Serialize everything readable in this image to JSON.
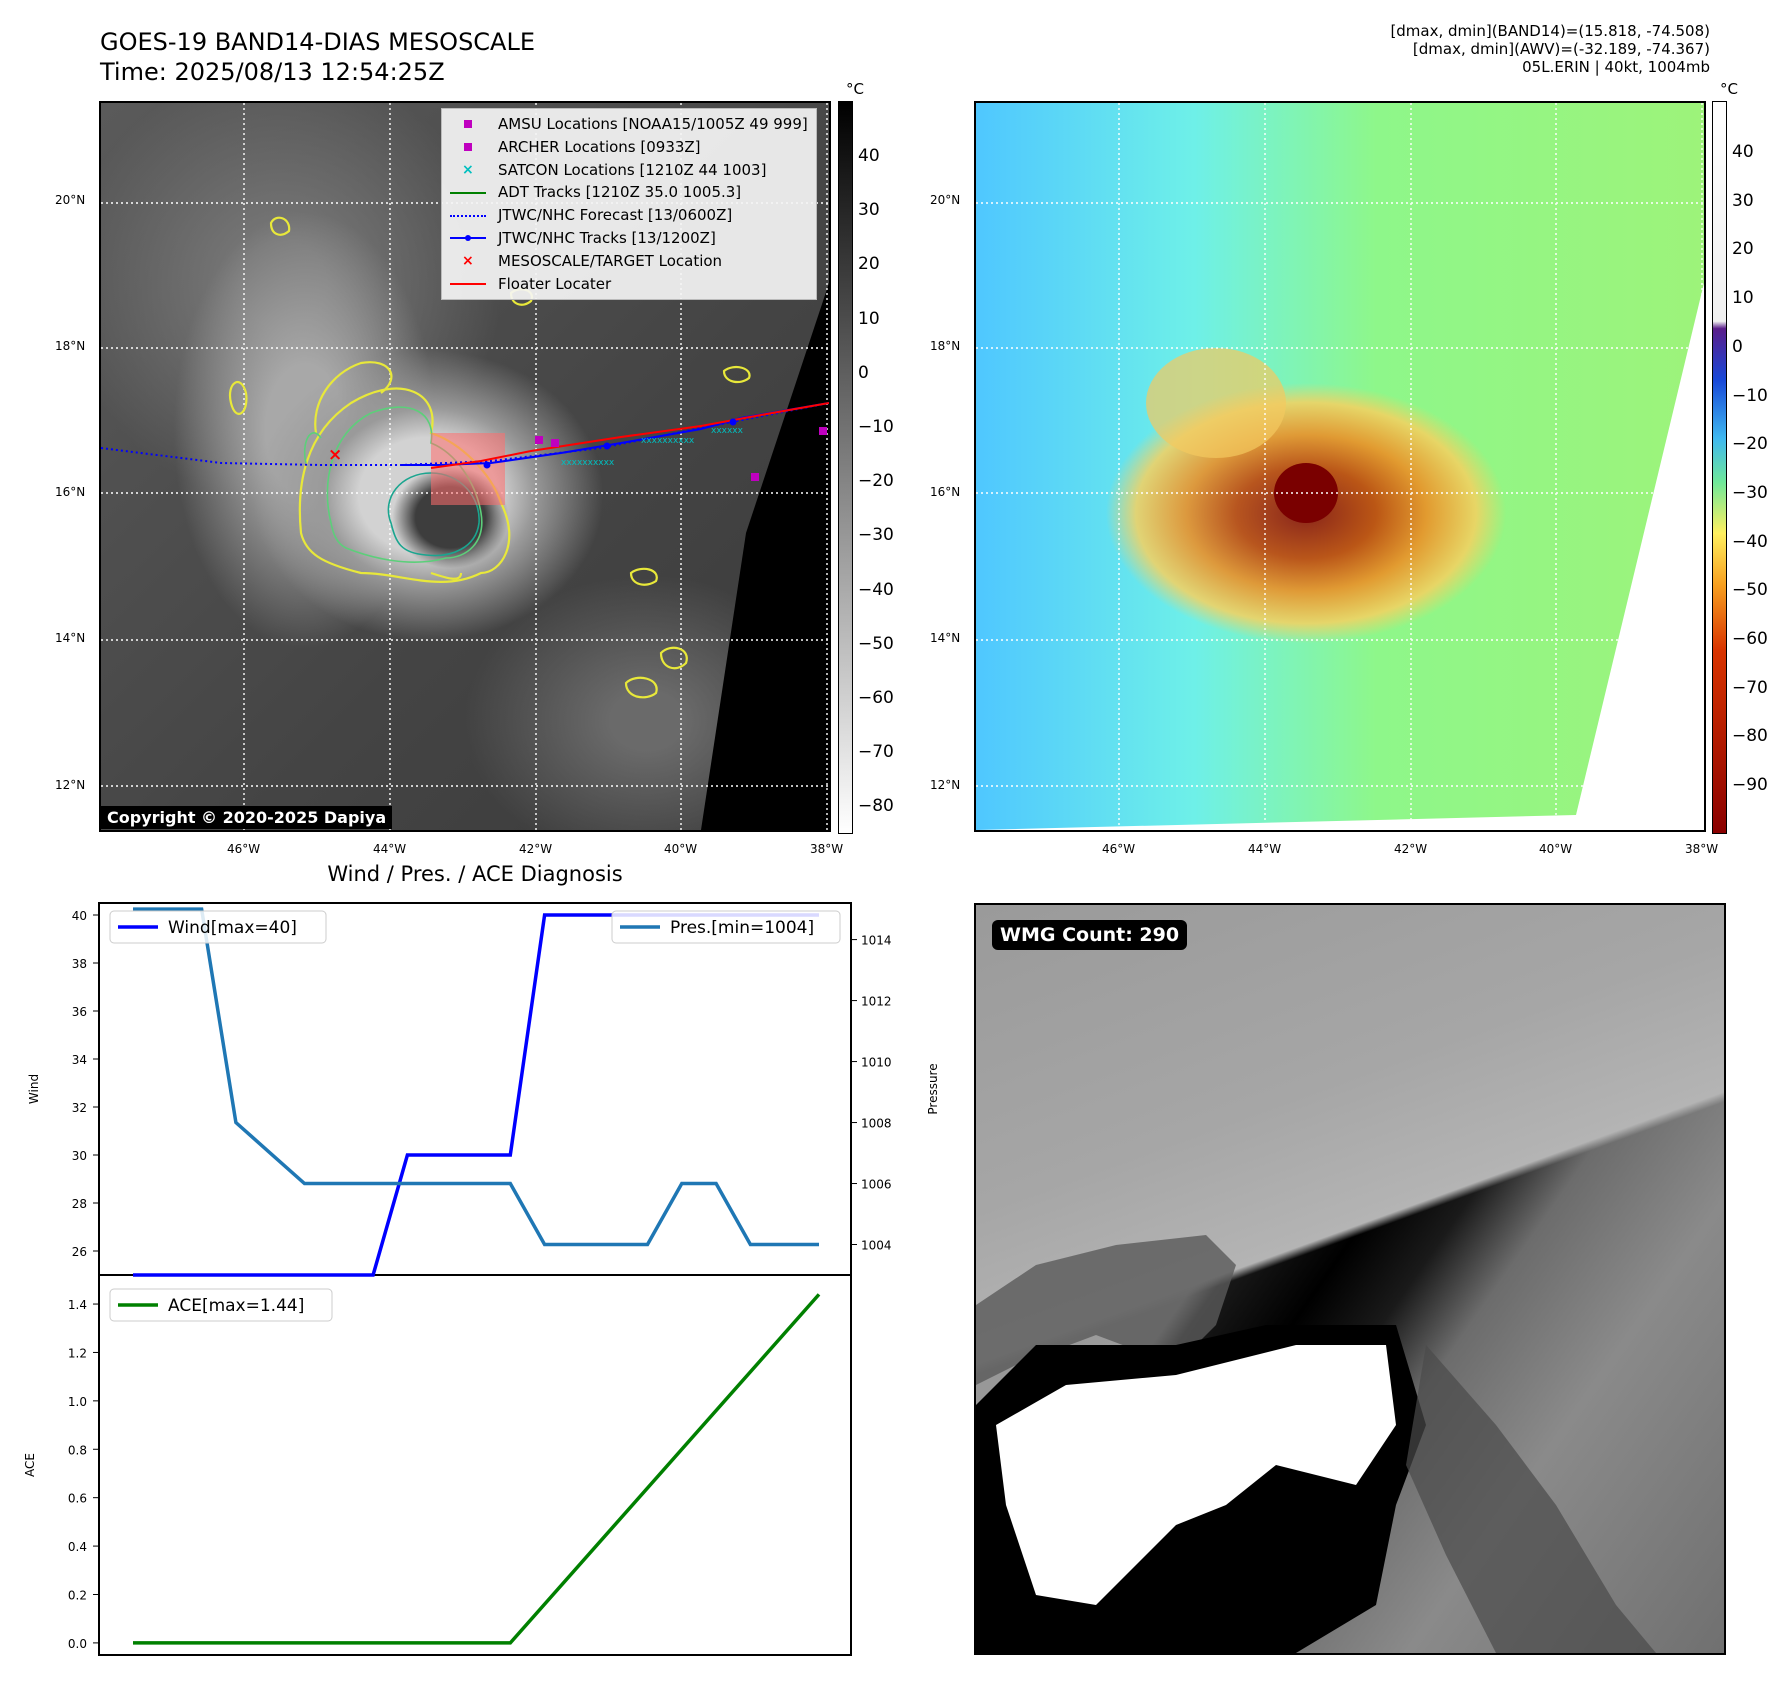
{
  "titles": {
    "main": "GOES-19 BAND14-DIAS MESOSCALE",
    "time": "Time: 2025/08/13 12:54:25Z",
    "info_lines": [
      "[dmax, dmin](BAND14)=(15.818, -74.508)",
      "[dmax, dmin](AWV)=(-32.189, -74.367)",
      "05L.ERIN | 40kt, 1004mb"
    ],
    "diag": "Wind / Pres. / ACE Diagnosis",
    "copyright": "Copyright © 2020-2025 Dapiya",
    "wmg": "WMG Count: 290"
  },
  "map": {
    "lat_labels": [
      "20°N",
      "18°N",
      "16°N",
      "14°N",
      "12°N"
    ],
    "lon_labels": [
      "46°W",
      "44°W",
      "42°W",
      "40°W",
      "38°W"
    ],
    "legend": [
      {
        "label": "AMSU Locations [NOAA15/1005Z 49 999]",
        "symbol": "square",
        "color": "#bf00bf"
      },
      {
        "label": "ARCHER Locations [0933Z]",
        "symbol": "square",
        "color": "#bf00bf"
      },
      {
        "label": "SATCON Locations [1210Z 44 1003]",
        "symbol": "x",
        "color": "#00bfbf"
      },
      {
        "label": "ADT Tracks [1210Z 35.0 1005.3]",
        "symbol": "line",
        "color": "#008000"
      },
      {
        "label": "JTWC/NHC Forecast [13/0600Z]",
        "symbol": "dotted",
        "color": "#0000ff"
      },
      {
        "label": "JTWC/NHC Tracks [13/1200Z]",
        "symbol": "line-dot",
        "color": "#0000ff"
      },
      {
        "label": "MESOSCALE/TARGET Location",
        "symbol": "x",
        "color": "#ff0000"
      },
      {
        "label": "Floater Locater",
        "symbol": "line",
        "color": "#ff0000"
      }
    ],
    "cbar_unit": "°C",
    "cbar1_ticks": [
      "40",
      "30",
      "20",
      "10",
      "0",
      "−10",
      "−20",
      "−30",
      "−40",
      "−50",
      "−60",
      "−70",
      "−80"
    ],
    "cbar2_ticks": [
      "40",
      "30",
      "20",
      "10",
      "0",
      "−10",
      "−20",
      "−30",
      "−40",
      "−50",
      "−60",
      "−70",
      "−80",
      "−90"
    ]
  },
  "chart_data": [
    {
      "type": "line",
      "title": "Wind / Pres. / ACE Diagnosis",
      "ylabel": "Wind",
      "y2label": "Pressure",
      "ylim": [
        25,
        40.5
      ],
      "y2lim": [
        1003,
        1015.2
      ],
      "yticks": [
        26,
        28,
        30,
        32,
        34,
        36,
        38,
        40
      ],
      "y2ticks": [
        1004,
        1006,
        1008,
        1010,
        1012,
        1014
      ],
      "x": [
        0,
        1,
        2,
        3,
        4,
        5,
        6,
        7,
        8,
        9,
        10,
        11,
        12,
        13,
        14,
        15,
        16,
        17,
        18,
        19,
        20
      ],
      "series": [
        {
          "name": "Wind[max=40]",
          "color": "#0000ff",
          "axis": "left",
          "values": [
            25,
            25,
            25,
            25,
            25,
            25,
            25,
            25,
            30,
            30,
            30,
            30,
            40,
            40,
            40,
            40,
            40,
            40,
            40,
            40,
            40
          ]
        },
        {
          "name": "Pres.[min=1004]",
          "color": "#1f77b4",
          "axis": "right",
          "values": [
            1015,
            1015,
            1015,
            1008,
            1007,
            1006,
            1006,
            1006,
            1006,
            1006,
            1006,
            1006,
            1004,
            1004,
            1004,
            1004,
            1006,
            1006,
            1004,
            1004,
            1004
          ]
        }
      ]
    },
    {
      "type": "line",
      "ylabel": "ACE",
      "ylim": [
        -0.05,
        1.52
      ],
      "yticks": [
        "0.0",
        "0.2",
        "0.4",
        "0.6",
        "0.8",
        "1.0",
        "1.2",
        "1.4"
      ],
      "x": [
        0,
        11,
        20
      ],
      "series": [
        {
          "name": "ACE[max=1.44]",
          "color": "#008000",
          "values": [
            0,
            0,
            1.44
          ]
        }
      ]
    }
  ]
}
